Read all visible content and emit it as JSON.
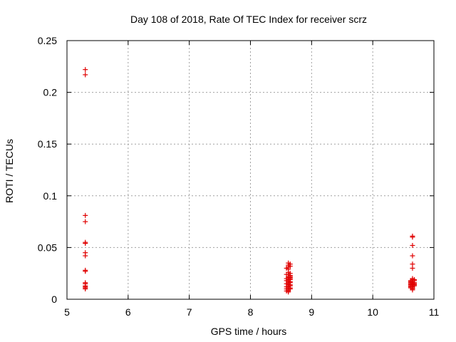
{
  "chart_data": {
    "type": "scatter",
    "title": "Day 108 of 2018, Rate Of TEC Index for receiver scrz",
    "xlabel": "GPS time / hours",
    "ylabel": "ROTI / TECUs",
    "xlim": [
      5,
      11
    ],
    "ylim": [
      0,
      0.25
    ],
    "xticks": [
      "5",
      "6",
      "7",
      "8",
      "9",
      "10",
      "11"
    ],
    "yticks": [
      "0",
      "0.05",
      "0.1",
      "0.15",
      "0.2",
      "0.25"
    ],
    "grid": true,
    "marker": "+",
    "color": "#e00000",
    "series": [
      {
        "x": [
          5.3,
          5.3,
          5.3,
          5.3,
          5.3,
          5.3,
          5.3,
          5.3,
          5.3,
          5.3,
          5.3,
          5.3,
          5.3,
          5.3,
          5.3,
          5.3,
          8.62,
          8.62,
          8.62,
          8.62,
          8.62,
          8.62,
          8.62,
          8.62,
          8.62,
          8.62,
          8.62,
          8.62,
          8.62,
          8.62,
          8.62,
          8.62,
          8.62,
          8.62,
          8.62,
          8.62,
          8.62,
          8.62,
          8.65,
          8.65,
          8.65,
          8.65,
          8.65,
          8.65,
          8.65,
          8.65,
          8.65,
          8.65,
          8.65,
          8.65,
          8.65,
          8.65,
          8.59,
          8.59,
          8.59,
          8.59,
          8.59,
          8.59,
          8.59,
          8.59,
          10.65,
          10.65,
          10.65,
          10.65,
          10.65,
          10.65,
          10.65,
          10.65,
          10.65,
          10.65,
          10.65,
          10.65,
          10.65,
          10.65,
          10.65,
          10.65,
          10.65,
          10.65,
          10.65,
          10.65,
          10.62,
          10.62,
          10.62,
          10.62,
          10.62,
          10.62,
          10.62,
          10.62,
          10.68,
          10.68,
          10.68,
          10.68,
          10.68,
          10.68
        ],
        "y": [
          0.222,
          0.217,
          0.081,
          0.075,
          0.055,
          0.054,
          0.045,
          0.042,
          0.028,
          0.027,
          0.016,
          0.015,
          0.013,
          0.012,
          0.011,
          0.01,
          0.035,
          0.033,
          0.031,
          0.029,
          0.026,
          0.024,
          0.022,
          0.021,
          0.02,
          0.019,
          0.018,
          0.017,
          0.016,
          0.015,
          0.014,
          0.013,
          0.012,
          0.011,
          0.01,
          0.009,
          0.008,
          0.007,
          0.034,
          0.032,
          0.025,
          0.023,
          0.022,
          0.021,
          0.02,
          0.019,
          0.017,
          0.016,
          0.014,
          0.013,
          0.011,
          0.01,
          0.03,
          0.024,
          0.02,
          0.018,
          0.015,
          0.012,
          0.01,
          0.008,
          0.061,
          0.06,
          0.052,
          0.042,
          0.034,
          0.03,
          0.02,
          0.019,
          0.018,
          0.017,
          0.016,
          0.015,
          0.015,
          0.014,
          0.014,
          0.013,
          0.012,
          0.011,
          0.01,
          0.009,
          0.018,
          0.017,
          0.016,
          0.015,
          0.014,
          0.013,
          0.012,
          0.011,
          0.019,
          0.018,
          0.016,
          0.015,
          0.014,
          0.013
        ]
      }
    ]
  }
}
